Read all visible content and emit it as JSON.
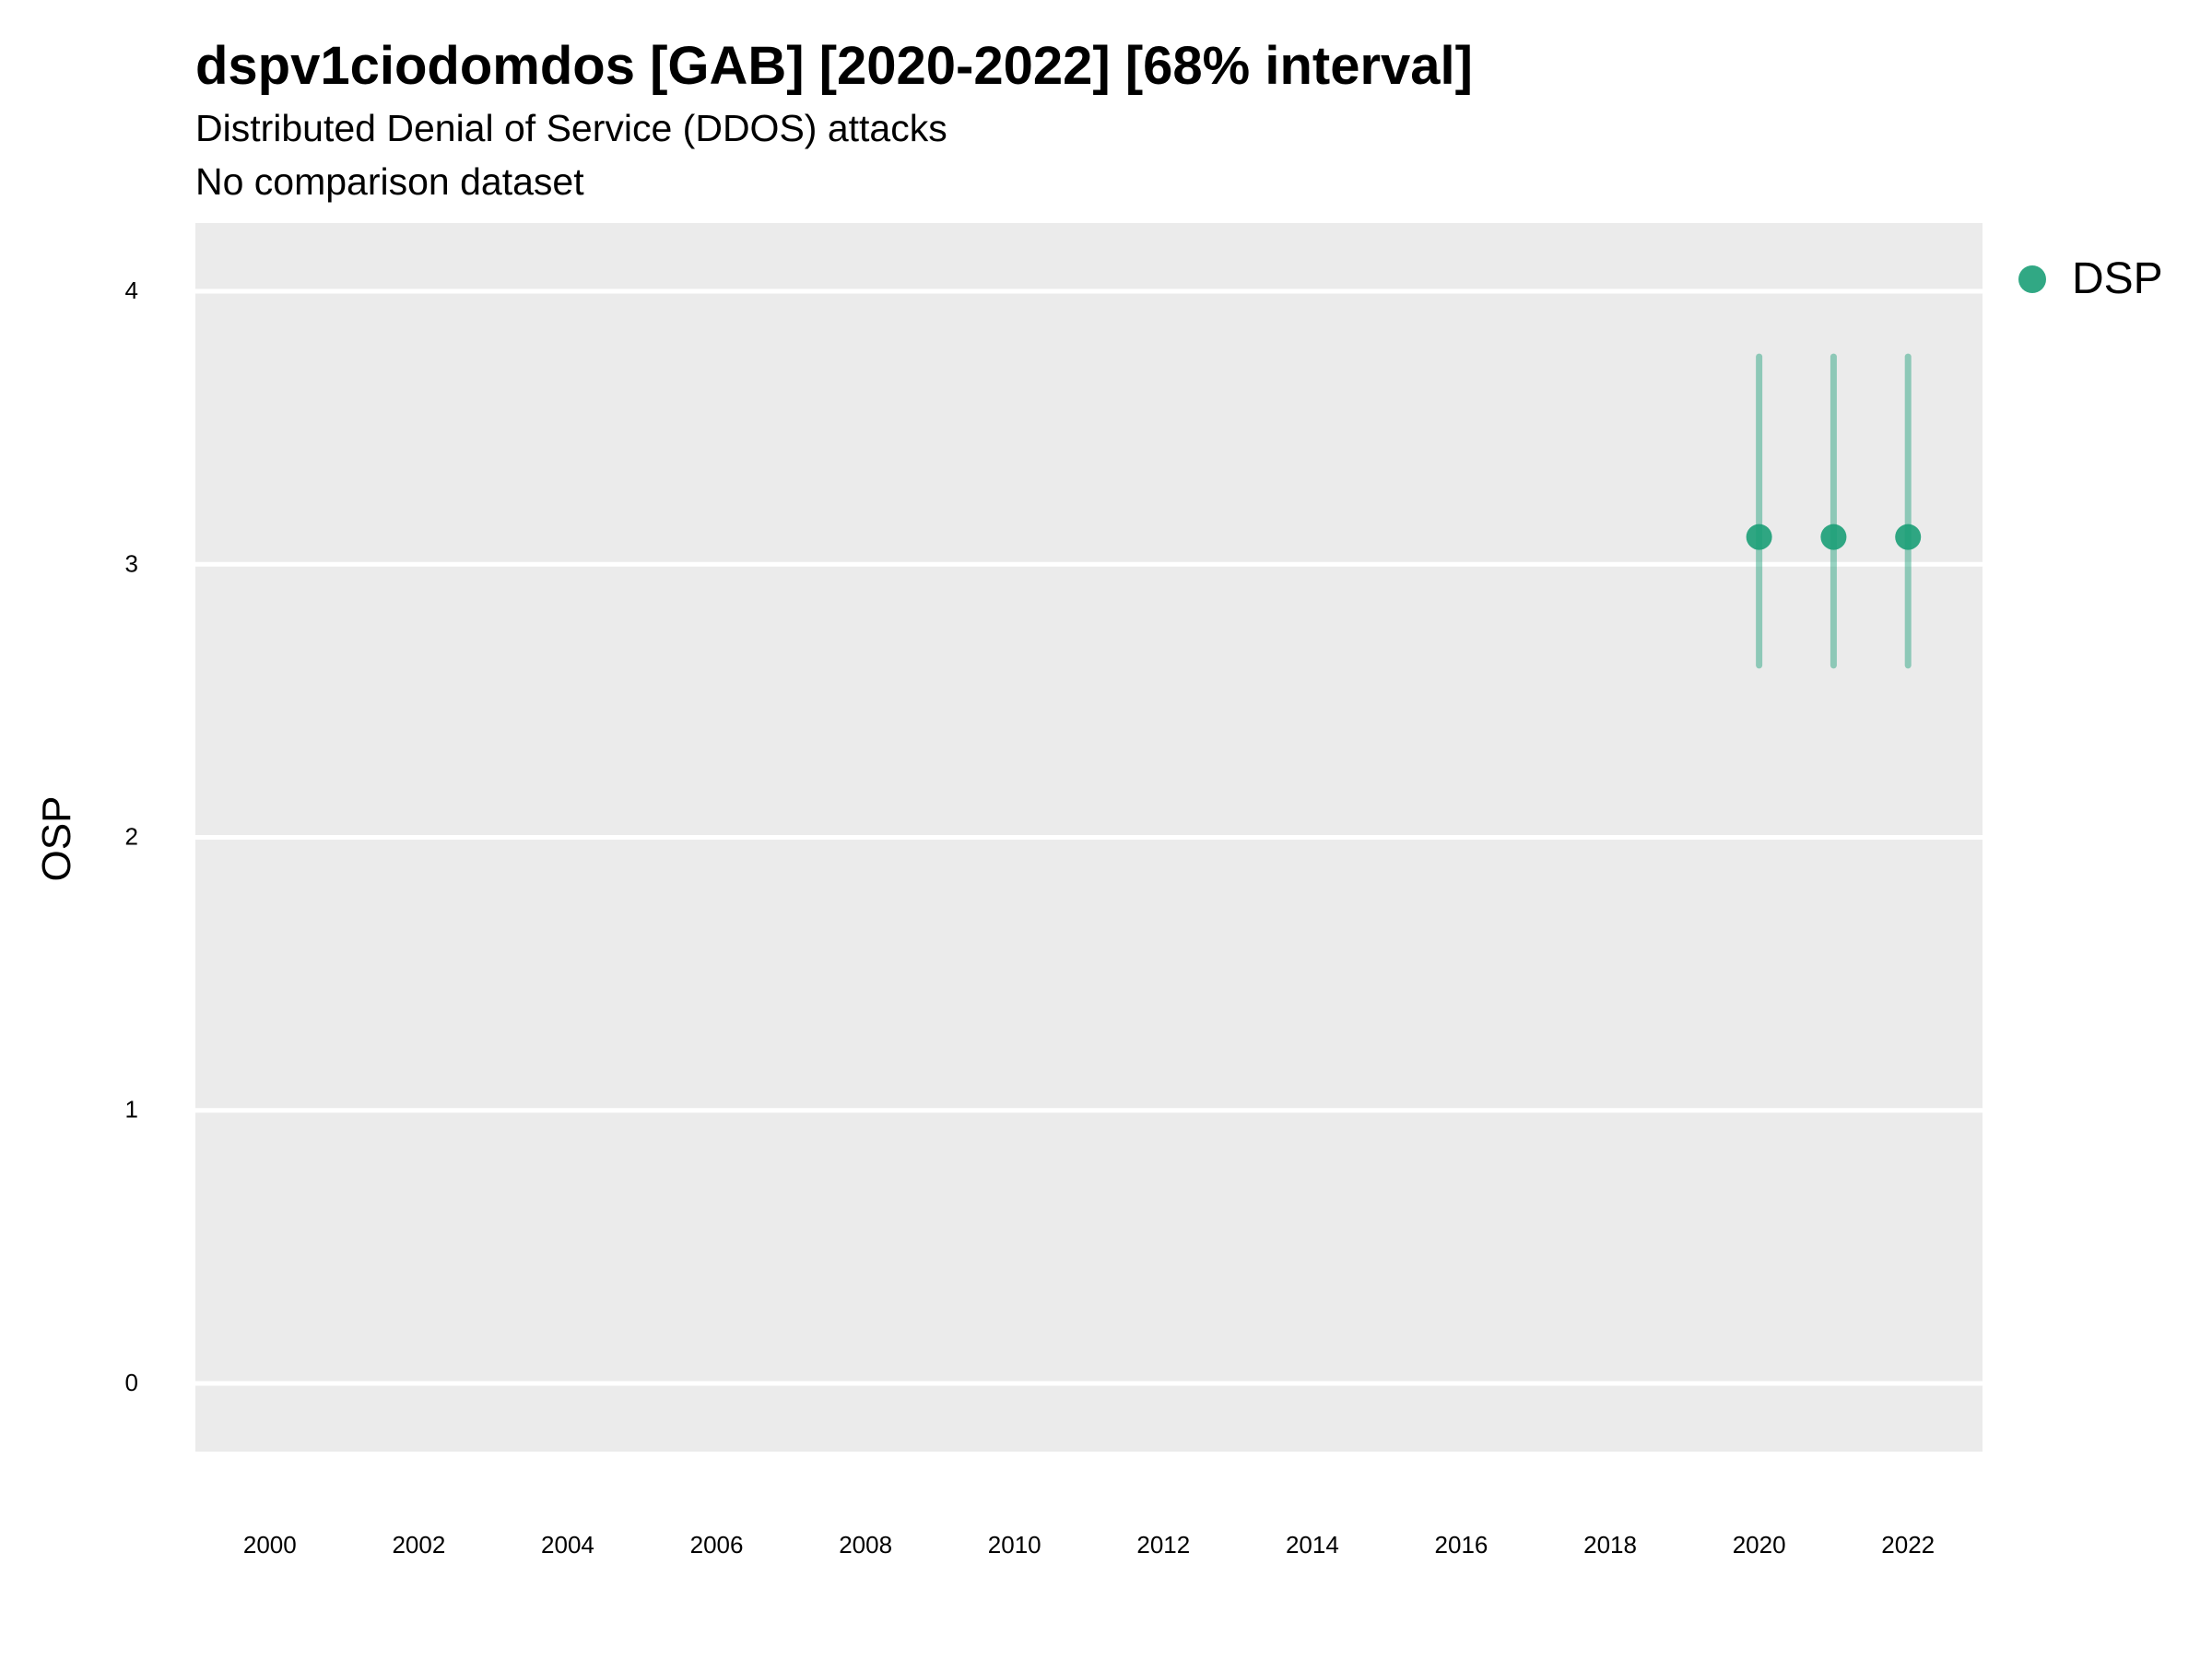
{
  "chart_data": {
    "type": "scatter",
    "title": "dspv1ciodomdos [GAB] [2020-2022] [68% interval]",
    "subtitle": "Distributed Denial of Service (DDOS) attacks",
    "caption": "No comparison dataset",
    "xlabel": "",
    "ylabel": "OSP",
    "xlim": [
      1999,
      2023
    ],
    "ylim": [
      -0.25,
      4.25
    ],
    "x_ticks": [
      2000,
      2002,
      2004,
      2006,
      2008,
      2010,
      2012,
      2014,
      2016,
      2018,
      2020,
      2022
    ],
    "y_ticks": [
      0,
      1,
      2,
      3,
      4
    ],
    "grid": true,
    "legend_position": "right",
    "series": [
      {
        "name": "DSP",
        "color": "#1b9e77",
        "points": [
          {
            "x": 2020,
            "y": 3.1,
            "low": 2.63,
            "high": 3.76
          },
          {
            "x": 2021,
            "y": 3.1,
            "low": 2.63,
            "high": 3.76
          },
          {
            "x": 2022,
            "y": 3.1,
            "low": 2.63,
            "high": 3.76
          }
        ]
      }
    ]
  }
}
